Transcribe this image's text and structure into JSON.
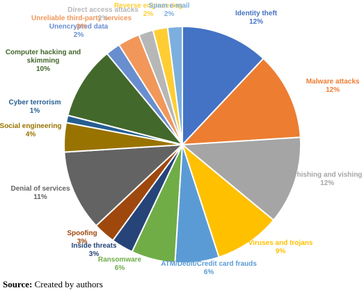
{
  "chart_data": {
    "type": "pie",
    "categories": [
      "Identity theft",
      "Malware attacks",
      "Phishing and vishing",
      "Viruses and trojans",
      "ATM/Debit/Credit card frauds",
      "Ransomware",
      "Inside threats",
      "Spoofing",
      "Denial of services",
      "Social engineering",
      "Cyber terrorism",
      "Computer hacking and skimming",
      "Unencrypted data",
      "Unreliable third-party services",
      "Direct access attacks",
      "Reverse engineering",
      "Spam e-mail"
    ],
    "values": [
      12,
      12,
      12,
      9,
      6,
      6,
      3,
      3,
      11,
      4,
      1,
      10,
      2,
      3,
      2,
      2,
      2
    ],
    "value_labels": [
      "12%",
      "12%",
      "12%",
      "9%",
      "6%",
      "6%",
      "3%",
      "3%",
      "11%",
      "4%",
      "1%",
      "10%",
      "2%",
      "3%",
      "2%",
      "2%",
      "2%"
    ],
    "colors": [
      "#4472c4",
      "#ed7d31",
      "#a5a5a5",
      "#ffc000",
      "#5b9bd5",
      "#70ad47",
      "#264478",
      "#9e480e",
      "#636363",
      "#997300",
      "#255e91",
      "#43682b",
      "#698ed0",
      "#f1975a",
      "#b7b7b7",
      "#ffcd33",
      "#7cafdd"
    ]
  },
  "source_label": "Source:",
  "source_text": "Created by authors"
}
